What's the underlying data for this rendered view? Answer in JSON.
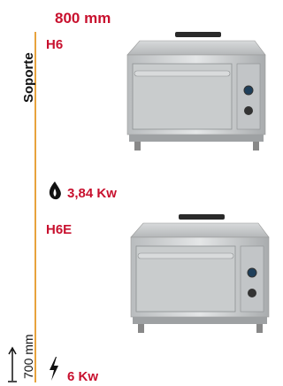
{
  "header": {
    "width": "800 mm"
  },
  "side_label": "Soporte",
  "products": [
    {
      "model": "H6",
      "power": "3,84 Kw"
    },
    {
      "model": "H6E",
      "power": "6 Kw"
    }
  ],
  "height_label": "700 mm"
}
